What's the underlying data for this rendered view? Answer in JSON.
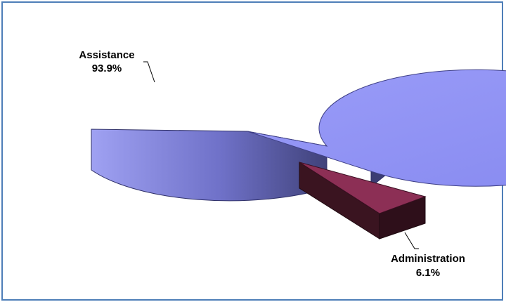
{
  "chart_data": {
    "type": "pie",
    "title": "",
    "legend": "none",
    "slices": [
      {
        "label": "Assistance",
        "value": 93.9,
        "value_label": "93.9%",
        "color": "#9092f5",
        "exploded": false
      },
      {
        "label": "Administration",
        "value": 6.1,
        "value_label": "6.1%",
        "color": "#8c2f55",
        "exploded": true
      }
    ]
  }
}
